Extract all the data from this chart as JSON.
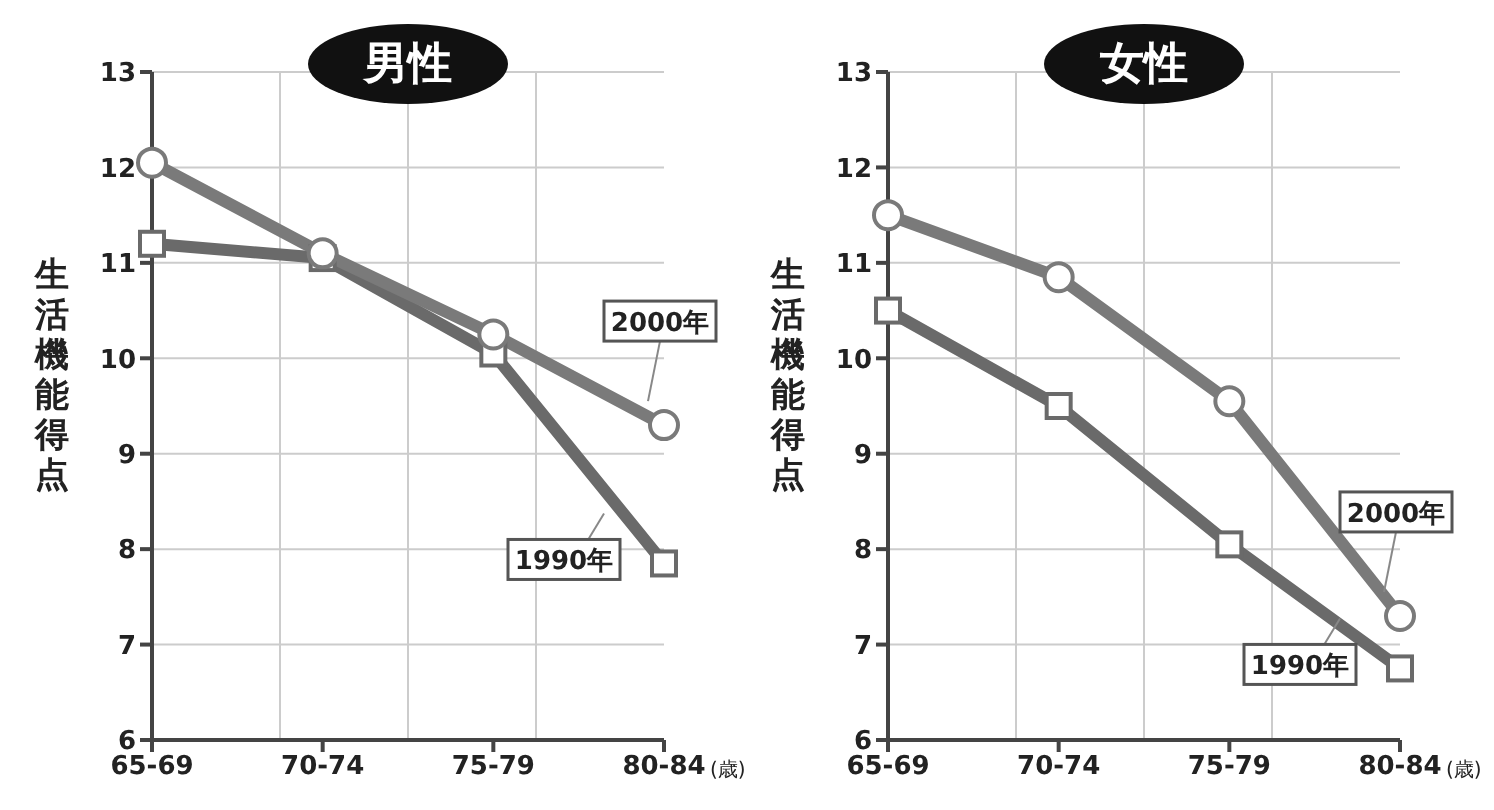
{
  "chart_data": [
    {
      "type": "line",
      "title": "男性",
      "ylabel": "生活機能得点",
      "xlabel": "(歳)",
      "categories": [
        "65-69",
        "70-74",
        "75-79",
        "80-84"
      ],
      "ylim": [
        6,
        13
      ],
      "yticks": [
        6,
        7,
        8,
        9,
        10,
        11,
        12,
        13
      ],
      "grid": true,
      "legend": false,
      "series": [
        {
          "name": "2000年",
          "color": "#7a7a7a",
          "marker": "circle",
          "values": [
            12.05,
            11.1,
            10.25,
            9.3
          ]
        },
        {
          "name": "1990年",
          "color": "#6a6a6a",
          "marker": "square",
          "values": [
            11.2,
            11.05,
            10.05,
            7.85
          ]
        }
      ]
    },
    {
      "type": "line",
      "title": "女性",
      "ylabel": "生活機能得点",
      "xlabel": "(歳)",
      "categories": [
        "65-69",
        "70-74",
        "75-79",
        "80-84"
      ],
      "ylim": [
        6,
        13
      ],
      "yticks": [
        6,
        7,
        8,
        9,
        10,
        11,
        12,
        13
      ],
      "grid": true,
      "legend": false,
      "series": [
        {
          "name": "2000年",
          "color": "#7a7a7a",
          "marker": "circle",
          "values": [
            11.5,
            10.85,
            9.55,
            7.3
          ]
        },
        {
          "name": "1990年",
          "color": "#6a6a6a",
          "marker": "square",
          "values": [
            10.5,
            9.5,
            8.05,
            6.75
          ]
        }
      ]
    }
  ]
}
